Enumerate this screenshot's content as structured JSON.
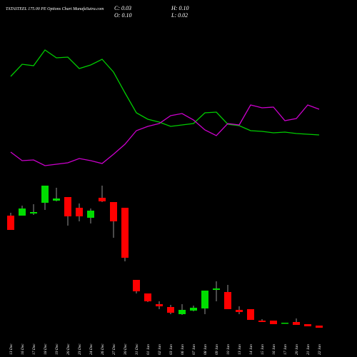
{
  "title": "TATASTEEL 175.00 PE Options Chart MunafaSutra.com",
  "ohlc": {
    "close": "C: 0.03",
    "high": "H: 0.10",
    "open": "O: 0.10",
    "low": "L: 0.02"
  },
  "chart_data": [
    {
      "type": "line",
      "ylim": [
        0,
        180
      ],
      "series": [
        {
          "name": "indicator-green",
          "color": "#00cc00",
          "values": [
            133,
            150,
            148,
            170,
            159,
            160,
            144,
            149,
            157,
            139,
            110,
            82,
            73,
            69,
            63,
            65,
            67,
            82,
            83,
            66,
            64,
            57,
            56,
            54,
            55,
            53,
            52,
            51
          ]
        },
        {
          "name": "indicator-magenta",
          "color": "#cc00cc",
          "values": [
            27,
            15,
            16,
            8,
            10,
            12,
            18,
            15,
            11,
            24,
            38,
            57,
            63,
            67,
            78,
            81,
            72,
            58,
            50,
            67,
            65,
            93,
            89,
            90,
            71,
            74,
            93,
            87
          ]
        }
      ]
    },
    {
      "type": "candlestick",
      "ylim": [
        0,
        2.2
      ],
      "up_color": "#00dd00",
      "down_color": "#ff0000",
      "categories": [
        "13 Dec",
        "16 Dec",
        "17 Dec",
        "18 Dec",
        "19 Dec",
        "20 Dec",
        "23 Dec",
        "24 Dec",
        "26 Dec",
        "27 Dec",
        "30 Dec",
        "31 Dec",
        "01 Jan",
        "02 Jan",
        "03 Jan",
        "06 Jan",
        "07 Jan",
        "08 Jan",
        "09 Jan",
        "10 Jan",
        "13 Jan",
        "14 Jan",
        "15 Jan",
        "16 Jan",
        "17 Jan",
        "20 Jan",
        "21 Jan",
        "22 Jan"
      ],
      "open": [
        1.68,
        1.68,
        1.71,
        1.86,
        1.89,
        1.94,
        1.79,
        1.65,
        1.93,
        1.87,
        1.79,
        0.78,
        0.59,
        0.44,
        0.4,
        0.3,
        0.35,
        0.38,
        0.64,
        0.61,
        0.36,
        0.37,
        0.21,
        0.21,
        0.17,
        0.19,
        0.16,
        0.14
      ],
      "high": [
        1.72,
        1.82,
        1.84,
        2.1,
        2.07,
        1.94,
        1.85,
        1.78,
        2.1,
        1.87,
        1.79,
        0.78,
        0.59,
        0.48,
        0.43,
        0.44,
        0.42,
        0.63,
        0.76,
        0.71,
        0.41,
        0.37,
        0.23,
        0.21,
        0.18,
        0.24,
        0.16,
        0.14
      ],
      "low": [
        1.48,
        1.68,
        1.69,
        1.76,
        1.88,
        1.54,
        1.6,
        1.57,
        1.87,
        1.37,
        1.04,
        0.59,
        0.47,
        0.37,
        0.3,
        0.29,
        0.34,
        0.3,
        0.48,
        0.37,
        0.3,
        0.22,
        0.19,
        0.16,
        0.17,
        0.15,
        0.13,
        0.11
      ],
      "close": [
        1.48,
        1.78,
        1.73,
        2.1,
        1.92,
        1.67,
        1.67,
        1.75,
        1.88,
        1.6,
        1.09,
        0.62,
        0.48,
        0.41,
        0.32,
        0.36,
        0.39,
        0.63,
        0.66,
        0.37,
        0.33,
        0.22,
        0.19,
        0.16,
        0.18,
        0.15,
        0.13,
        0.11
      ]
    }
  ]
}
